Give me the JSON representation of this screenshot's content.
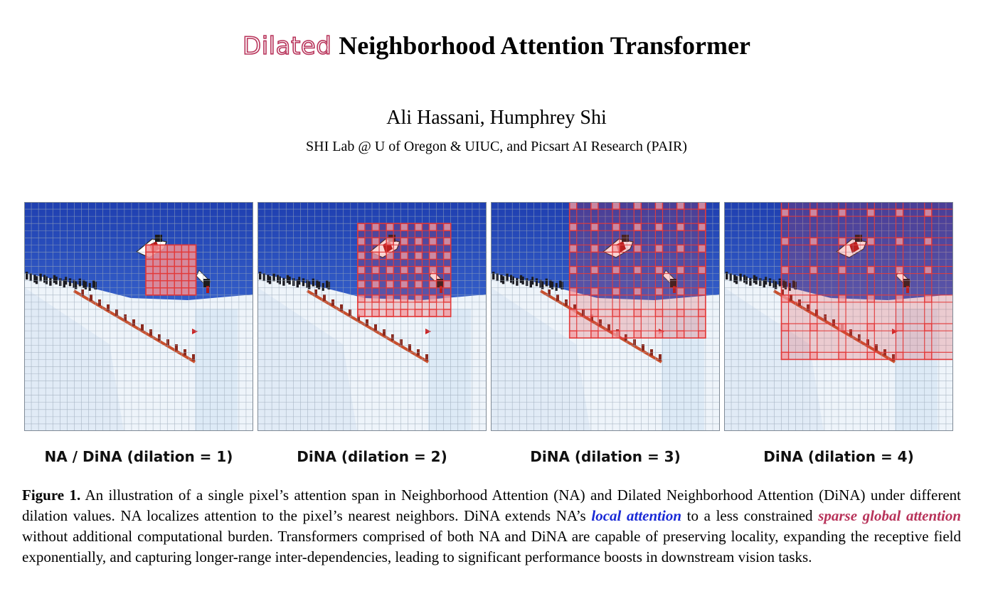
{
  "header": {
    "title_prefix": "Dilated",
    "title_main": "Neighborhood Attention Transformer",
    "authors": "Ali Hassani, Humphrey Shi",
    "affiliation": "SHI Lab @ U of Oregon & UIUC, and Picsart AI Research (PAIR)"
  },
  "figure": {
    "panels": [
      {
        "caption": "NA / DiNA (dilation = 1)",
        "dilation": 1
      },
      {
        "caption": "DiNA (dilation = 2)",
        "dilation": 2
      },
      {
        "caption": "DiNA (dilation = 3)",
        "dilation": 3
      },
      {
        "caption": "DiNA (dilation = 4)",
        "dilation": 4
      }
    ],
    "grid_cells_per_side": 32,
    "window_size": 7,
    "colors": {
      "sky_top": "#1f3fb0",
      "sky_bottom": "#4f86e8",
      "snow": "#eef4fa",
      "grid": "#9aa8b8",
      "attention": "#e23a3a"
    },
    "caption": {
      "label": "Figure 1.",
      "part1": " An illustration of a single pixel’s attention span in Neighborhood Attention (NA) and Dilated Neighborhood Attention (DiNA) under different dilation values.  NA localizes attention to the pixel’s nearest neighbors.  DiNA extends NA’s ",
      "highlight_local": "local attention",
      "part2": " to a less constrained ",
      "highlight_global": "sparse global attention",
      "part3": " without additional computational burden. Transformers comprised of both NA and DiNA are capable of preserving locality, expanding the receptive field exponentially, and capturing longer-range inter-dependencies, leading to significant performance boosts in downstream vision tasks."
    }
  }
}
